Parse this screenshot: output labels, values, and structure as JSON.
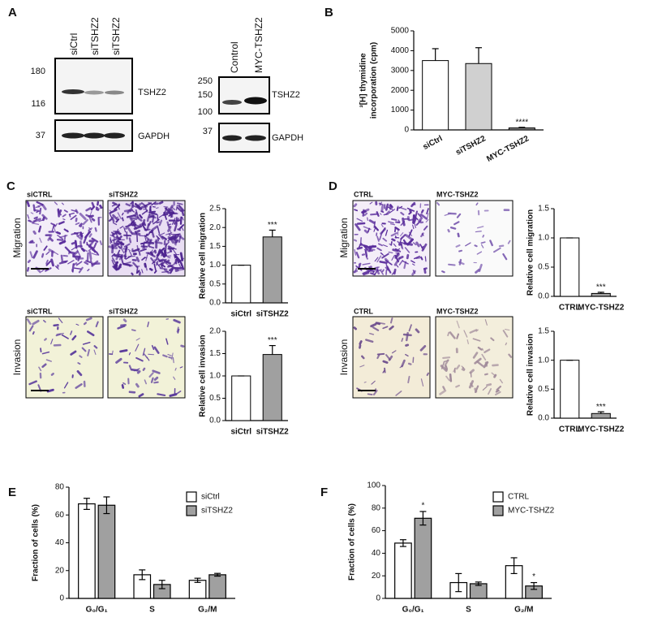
{
  "panel_labels": [
    "A",
    "B",
    "C",
    "D",
    "E",
    "F"
  ],
  "blot_left": {
    "lanes": [
      "siCtrl",
      "siTSHZ2",
      "siTSHZ2"
    ],
    "markers": [
      180,
      116,
      37
    ],
    "bands": [
      "TSHZ2",
      "GAPDH"
    ]
  },
  "blot_right": {
    "lanes": [
      "Control",
      "MYC-TSHZ2"
    ],
    "markers": [
      250,
      150,
      100,
      37
    ],
    "bands": [
      "TSHZ2",
      "GAPDH"
    ]
  },
  "micrographs": {
    "rows": [
      "Migration",
      "Invasion"
    ],
    "c_labels": [
      "siCTRL",
      "siTSHZ2"
    ],
    "d_labels": [
      "CTRL",
      "MYC-TSHZ2"
    ]
  },
  "chart_data": [
    {
      "type": "bar",
      "ylabel": [
        "³[H] thymidine",
        "incorporation (cpm)"
      ],
      "categories": [
        "siCtrl",
        "siTSHZ2",
        "MYC-TSHZ2"
      ],
      "values": [
        3500,
        3350,
        100
      ],
      "errors": [
        600,
        800,
        30
      ],
      "colors": [
        "#ffffff",
        "#d0d0d0",
        "#888888"
      ],
      "value_annotations": [
        null,
        null,
        "****"
      ],
      "ylim": [
        0,
        5000
      ],
      "yticks": [
        0,
        1000,
        2000,
        3000,
        4000,
        5000
      ]
    },
    {
      "type": "bar",
      "ylabel": "Relative cell migration",
      "categories": [
        "siCtrl",
        "siTSHZ2"
      ],
      "values": [
        1.0,
        1.75
      ],
      "errors": [
        0,
        0.18
      ],
      "colors": [
        "#ffffff",
        "#a0a0a0"
      ],
      "value_annotations": [
        null,
        "***"
      ],
      "ylim": [
        0,
        2.5
      ],
      "yticks": [
        {
          "value": 0,
          "label": "0.0"
        },
        0.5,
        {
          "value": 1,
          "label": "1.0"
        },
        1.5,
        {
          "value": 2,
          "label": "2.0"
        },
        2.5
      ]
    },
    {
      "type": "bar",
      "ylabel": "Relative cell invasion",
      "categories": [
        "siCtrl",
        "siTSHZ2"
      ],
      "values": [
        1.0,
        1.48
      ],
      "errors": [
        0,
        0.2
      ],
      "colors": [
        "#ffffff",
        "#a0a0a0"
      ],
      "value_annotations": [
        null,
        "***"
      ],
      "ylim": [
        0,
        2.0
      ],
      "yticks": [
        {
          "value": 0,
          "label": "0.0"
        },
        0.5,
        {
          "value": 1,
          "label": "1.0"
        },
        1.5,
        {
          "value": 2,
          "label": "2.0"
        }
      ]
    },
    {
      "type": "bar",
      "ylabel": "Relative cell migration",
      "categories": [
        "CTRL",
        "MYC-TSHZ2"
      ],
      "values": [
        1.0,
        0.05
      ],
      "errors": [
        0,
        0.02
      ],
      "colors": [
        "#ffffff",
        "#a0a0a0"
      ],
      "value_annotations": [
        null,
        "***"
      ],
      "ylim": [
        0,
        1.5
      ],
      "yticks": [
        {
          "value": 0,
          "label": "0.0"
        },
        0.5,
        {
          "value": 1,
          "label": "1.0"
        },
        1.5
      ]
    },
    {
      "type": "bar",
      "ylabel": "Relative cell invasion",
      "categories": [
        "CTRL",
        "MYC-TSHZ2"
      ],
      "values": [
        1.0,
        0.08
      ],
      "errors": [
        0,
        0.03
      ],
      "colors": [
        "#ffffff",
        "#a0a0a0"
      ],
      "value_annotations": [
        null,
        "***"
      ],
      "ylim": [
        0,
        1.5
      ],
      "yticks": [
        {
          "value": 0,
          "label": "0.0"
        },
        0.5,
        {
          "value": 1,
          "label": "1.0"
        },
        1.5
      ]
    },
    {
      "type": "grouped_bar",
      "ylabel": "Fraction of cells (%)",
      "categories": [
        "G₀/G₁",
        "S",
        "G₂/M"
      ],
      "series": [
        {
          "name": "siCtrl",
          "color": "#ffffff",
          "values": [
            68,
            17,
            13
          ],
          "errors": [
            4,
            3.5,
            1.5
          ]
        },
        {
          "name": "siTSHZ2",
          "color": "#a0a0a0",
          "values": [
            67,
            10,
            17
          ],
          "errors": [
            6,
            3,
            1
          ]
        }
      ],
      "ylim": [
        0,
        80
      ],
      "yticks": [
        0,
        20,
        40,
        60,
        80
      ]
    },
    {
      "type": "grouped_bar",
      "ylabel": "Fraction of cells (%)",
      "categories": [
        "G₀/G₁",
        "S",
        "G₂/M"
      ],
      "series": [
        {
          "name": "CTRL",
          "color": "#ffffff",
          "values": [
            49,
            14,
            29
          ],
          "errors": [
            3,
            8,
            7
          ]
        },
        {
          "name": "MYC-TSHZ2",
          "color": "#a0a0a0",
          "values": [
            71,
            13,
            11
          ],
          "errors": [
            6,
            1.5,
            3
          ],
          "value_annotations": [
            "*",
            null,
            "*"
          ]
        }
      ],
      "ylim": [
        0,
        100
      ],
      "yticks": [
        0,
        20,
        40,
        60,
        80,
        100
      ]
    }
  ]
}
